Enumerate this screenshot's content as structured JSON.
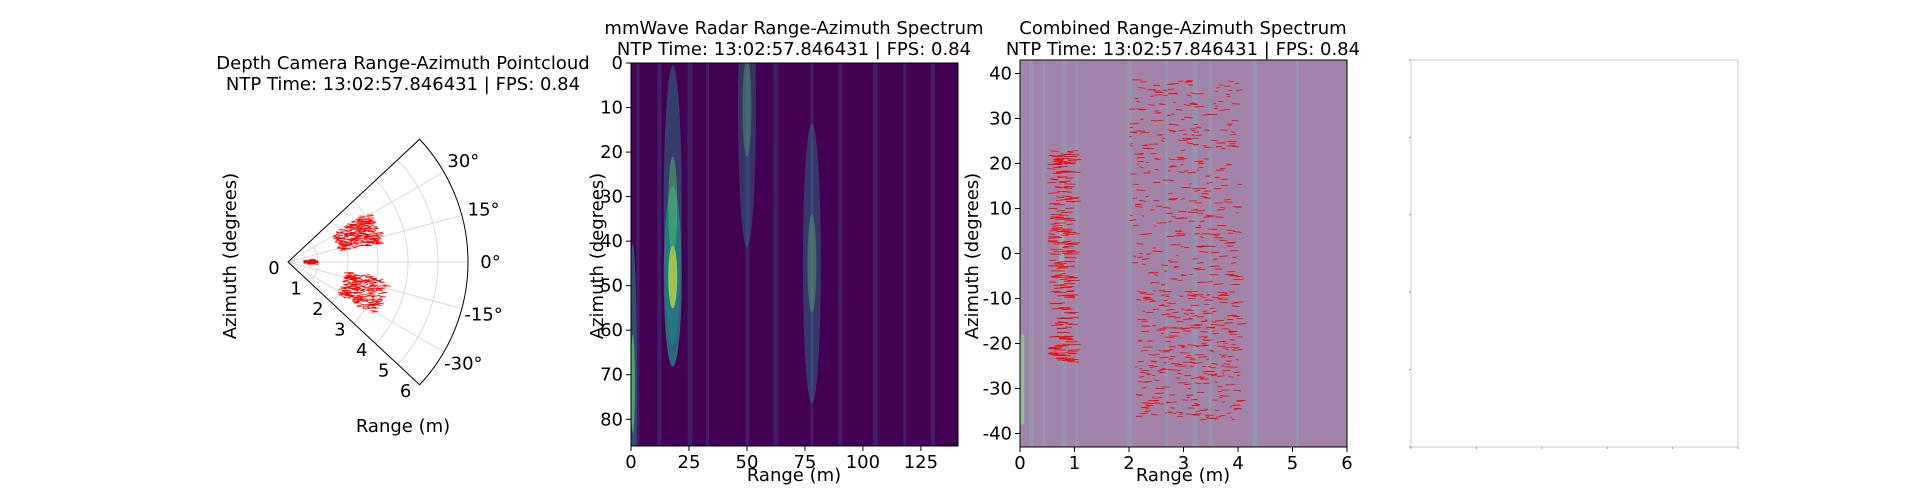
{
  "figure": {
    "polar": {
      "title": "Depth Camera Range-Azimuth Pointcloud",
      "subtitle": "NTP Time: 13:02:57.846431 | FPS: 0.84",
      "xlabel": "Range (m)",
      "ylabel": "Azimuth (degrees)",
      "radial_ticks": [
        "0",
        "1",
        "2",
        "3",
        "4",
        "5",
        "6"
      ],
      "angle_ticks": [
        "30°",
        "15°",
        "0°",
        "-15°",
        "-30°"
      ]
    },
    "radar": {
      "title": "mmWave Radar Range-Azimuth Spectrum",
      "subtitle": "NTP Time: 13:02:57.846431 | FPS: 0.84",
      "xlabel": "Range (m)",
      "ylabel": "Azimuth (degrees)",
      "x_ticks": [
        "0",
        "25",
        "50",
        "75",
        "100",
        "125"
      ],
      "y_ticks": [
        "0",
        "10",
        "20",
        "30",
        "40",
        "50",
        "60",
        "70",
        "80"
      ]
    },
    "combined": {
      "title": "Combined Range-Azimuth Spectrum",
      "subtitle": "NTP Time: 13:02:57.846431 | FPS: 0.84",
      "xlabel": "Range (m)",
      "ylabel": "Azimuth (degrees)",
      "x_ticks": [
        "0",
        "1",
        "2",
        "3",
        "4",
        "5",
        "6"
      ],
      "y_ticks": [
        "40",
        "30",
        "20",
        "10",
        "0",
        "-10",
        "-20",
        "-30",
        "-40"
      ]
    }
  },
  "colors": {
    "points": "#ff0000",
    "viridis_low": "#440154",
    "viridis_mid": "#21918c",
    "viridis_high": "#fde725",
    "overlay_tint": "#a283a8"
  },
  "chart_data": [
    {
      "type": "scatter",
      "title": "Depth Camera Range-Azimuth Pointcloud",
      "subtitle": "NTP Time: 13:02:57.846431 | FPS: 0.84",
      "projection": "polar",
      "xlabel": "Range (m)",
      "ylabel": "Azimuth (degrees)",
      "r_range": [
        0,
        6
      ],
      "theta_range_deg": [
        -43,
        43
      ],
      "angle_ticks_deg": [
        30,
        15,
        0,
        -15,
        -30
      ],
      "clusters": [
        {
          "r_range": [
            0.5,
            0.8
          ],
          "theta_range_deg": [
            -5,
            5
          ]
        },
        {
          "r_range": [
            1.7,
            3.1
          ],
          "theta_range_deg": [
            12,
            33
          ]
        },
        {
          "r_range": [
            1.9,
            3.3
          ],
          "theta_range_deg": [
            -33,
            -10
          ]
        }
      ],
      "grid": true
    },
    {
      "type": "heatmap",
      "title": "mmWave Radar Range-Azimuth Spectrum",
      "subtitle": "NTP Time: 13:02:57.846431 | FPS: 0.84",
      "xlabel": "Range (m)",
      "ylabel": "Azimuth (degrees)",
      "xlim": [
        0,
        141
      ],
      "ylim": [
        86,
        0
      ],
      "colormap": "viridis",
      "peaks": [
        {
          "x": 0.8,
          "y": 72,
          "intensity": 0.7
        },
        {
          "x": 18,
          "y": 48,
          "intensity": 1.0
        },
        {
          "x": 18,
          "y": 32,
          "intensity": 0.45
        },
        {
          "x": 50,
          "y": 10,
          "intensity": 0.3
        },
        {
          "x": 78,
          "y": 45,
          "intensity": 0.35
        }
      ],
      "grid": false
    },
    {
      "type": "heatmap",
      "title": "Combined Range-Azimuth Spectrum",
      "subtitle": "NTP Time: 13:02:57.846431 | FPS: 0.84",
      "xlabel": "Range (m)",
      "ylabel": "Azimuth (degrees)",
      "xlim": [
        0,
        6
      ],
      "ylim": [
        -43,
        43
      ],
      "colormap": "viridis (semi-transparent overlay)",
      "point_clusters": [
        {
          "x_range": [
            0.5,
            0.9
          ],
          "y_range": [
            -24,
            23
          ]
        },
        {
          "x_range": [
            2.0,
            4.0
          ],
          "y_range": [
            -7,
            39
          ]
        },
        {
          "x_range": [
            2.1,
            4.0
          ],
          "y_range": [
            -37,
            -8
          ]
        }
      ],
      "grid": false
    }
  ]
}
